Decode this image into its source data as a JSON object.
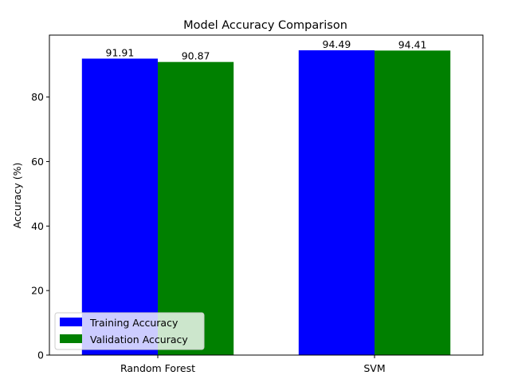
{
  "chart_data": {
    "type": "bar",
    "title": "Model Accuracy Comparison",
    "xlabel": "",
    "ylabel": "Accuracy (%)",
    "categories": [
      "Random Forest",
      "SVM"
    ],
    "series": [
      {
        "name": "Training Accuracy",
        "color": "#0000ff",
        "values": [
          91.91,
          94.49
        ]
      },
      {
        "name": "Validation Accuracy",
        "color": "#008000",
        "values": [
          90.87,
          94.41
        ]
      }
    ],
    "value_labels": [
      [
        "91.91",
        "94.49"
      ],
      [
        "90.87",
        "94.41"
      ]
    ],
    "ylim": [
      0,
      99.2
    ],
    "yticks": [
      0,
      20,
      40,
      60,
      80
    ],
    "ytick_labels": [
      "0",
      "20",
      "40",
      "60",
      "80"
    ],
    "grid": false,
    "legend_position": "lower-left"
  }
}
